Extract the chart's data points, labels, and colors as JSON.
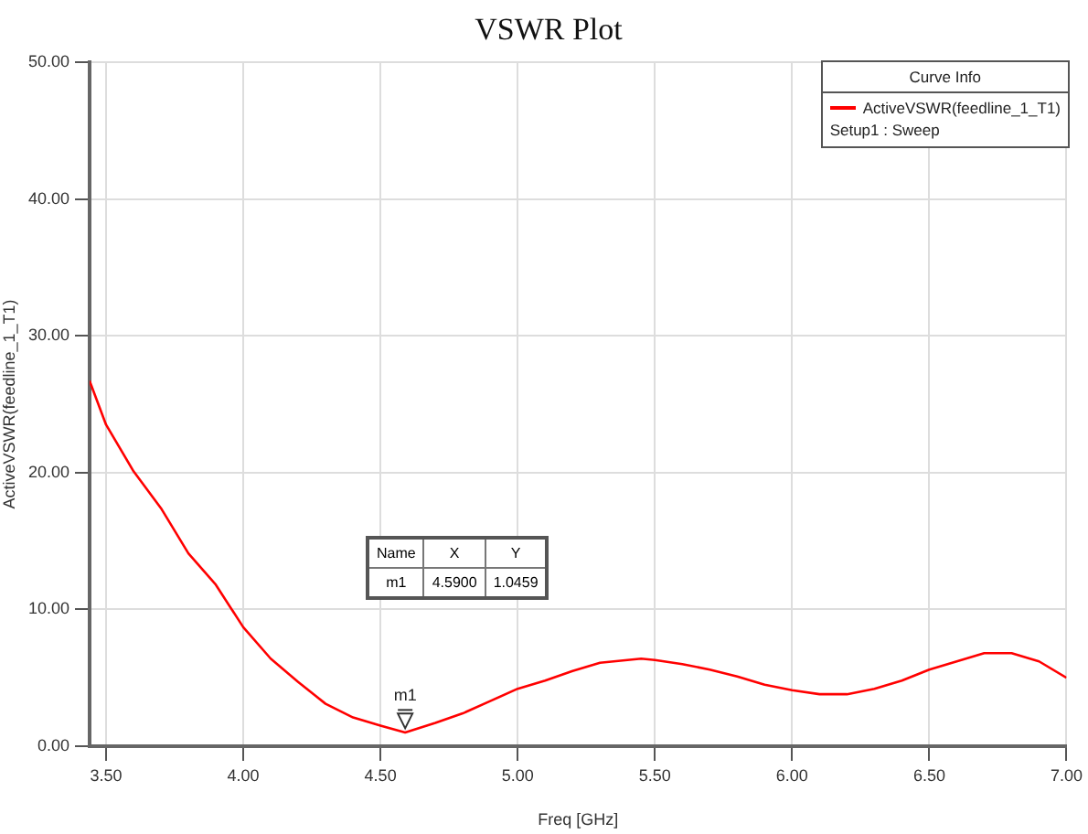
{
  "chart_data": {
    "type": "line",
    "title": "VSWR Plot",
    "xlabel": "Freq [GHz]",
    "ylabel": "ActiveVSWR(feedline_1_T1)",
    "legend_title": "Curve Info",
    "legend": "top right",
    "grid": true,
    "marker": "none",
    "line_style": "solid",
    "xlim": [
      3.44,
      7.0
    ],
    "xticks": [
      {
        "value": 3.5,
        "label": "3.50"
      },
      {
        "value": 4,
        "label": "4.00"
      },
      {
        "value": 4.5,
        "label": "4.50"
      },
      {
        "value": 5,
        "label": "5.00"
      },
      {
        "value": 5.5,
        "label": "5.50"
      },
      {
        "value": 6,
        "label": "6.00"
      },
      {
        "value": 6.5,
        "label": "6.50"
      },
      {
        "value": 7,
        "label": "7.00"
      }
    ],
    "ylim": [
      0,
      50
    ],
    "yticks": [
      {
        "value": 0,
        "label": "0.00"
      },
      {
        "value": 10,
        "label": "10.00"
      },
      {
        "value": 20,
        "label": "20.00"
      },
      {
        "value": 30,
        "label": "30.00"
      },
      {
        "value": 40,
        "label": "40.00"
      },
      {
        "value": 50,
        "label": "50.00"
      }
    ],
    "annotations": [
      {
        "text": "m1",
        "x": 4.59,
        "y": 1.0459
      },
      "Setup1 : Sweep",
      "Name",
      "X",
      "Y",
      "m1",
      "4.5900",
      "1.0459"
    ],
    "series": [
      {
        "name": "ActiveVSWR(feedline_1_T1)",
        "color": "#ff0000",
        "x": [
          3.44,
          3.5,
          3.6,
          3.7,
          3.8,
          3.9,
          4.0,
          4.1,
          4.2,
          4.3,
          4.4,
          4.5,
          4.59,
          4.7,
          4.8,
          4.9,
          5.0,
          5.1,
          5.2,
          5.3,
          5.4,
          5.45,
          5.5,
          5.6,
          5.7,
          5.8,
          5.9,
          6.0,
          6.1,
          6.2,
          6.3,
          6.4,
          6.5,
          6.6,
          6.7,
          6.8,
          6.9,
          7.0
        ],
        "values": [
          26.7,
          23.5,
          20.1,
          17.4,
          14.1,
          11.8,
          8.7,
          6.4,
          4.7,
          3.1,
          2.1,
          1.5,
          1.0,
          1.7,
          2.4,
          3.3,
          4.2,
          4.8,
          5.5,
          6.1,
          6.3,
          6.4,
          6.3,
          6.0,
          5.6,
          5.1,
          4.5,
          4.1,
          3.8,
          3.8,
          4.2,
          4.8,
          5.6,
          6.2,
          6.8,
          6.8,
          6.2,
          5.0
        ]
      }
    ]
  }
}
